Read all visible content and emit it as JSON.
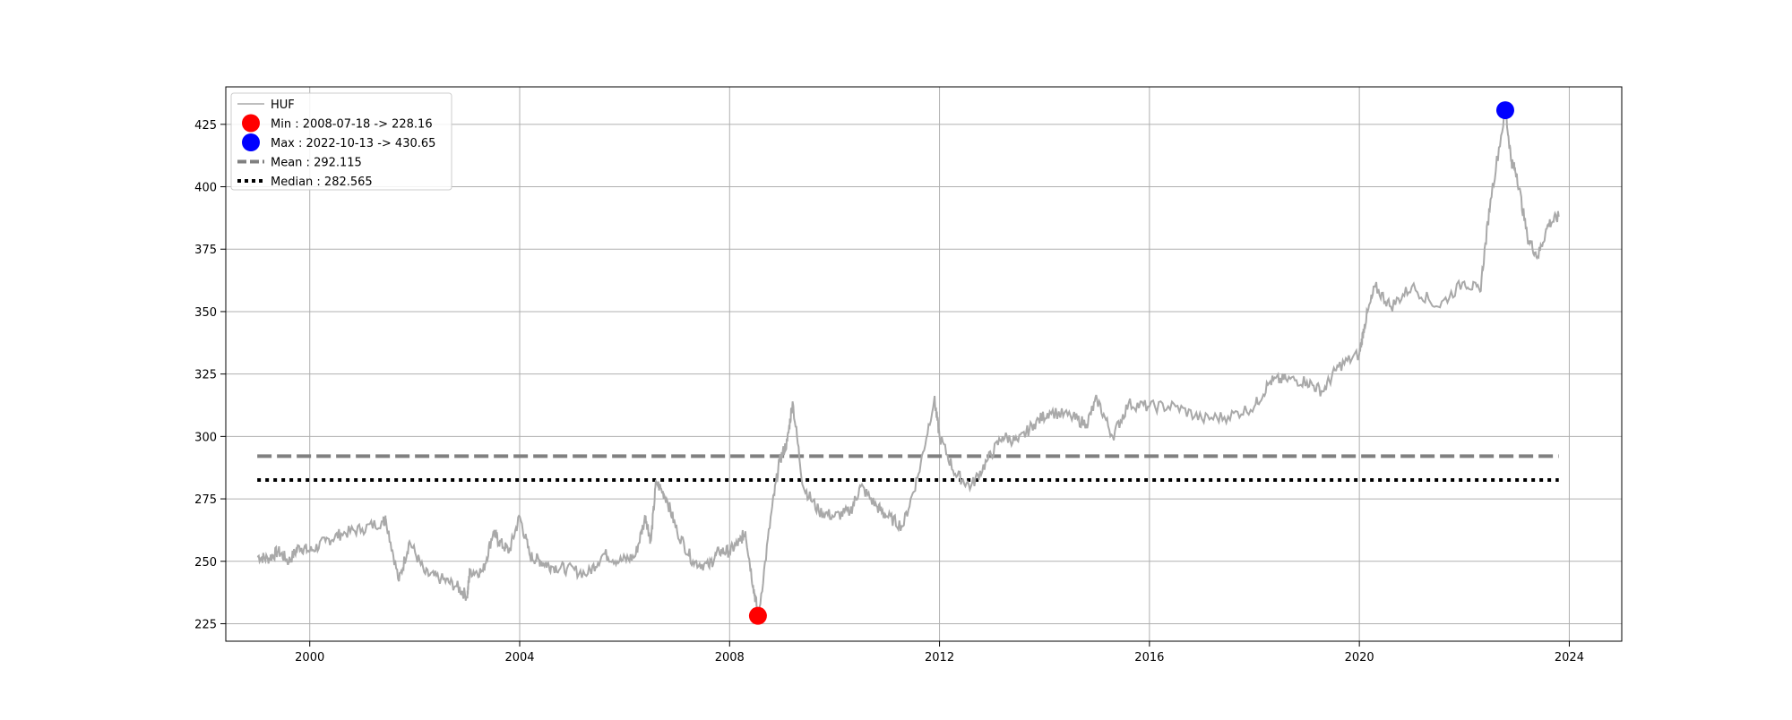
{
  "chart_data": {
    "type": "line",
    "title": "",
    "xlabel": "",
    "ylabel": "",
    "xlim": [
      1998.4,
      2025.0
    ],
    "ylim": [
      218,
      440
    ],
    "x_ticks": [
      2000,
      2004,
      2008,
      2012,
      2016,
      2020,
      2024
    ],
    "x_tick_labels": [
      "2000",
      "2004",
      "2008",
      "2012",
      "2016",
      "2020",
      "2024"
    ],
    "y_ticks": [
      225,
      250,
      275,
      300,
      325,
      350,
      375,
      400,
      425
    ],
    "y_tick_labels": [
      "225",
      "250",
      "275",
      "300",
      "325",
      "350",
      "375",
      "400",
      "425"
    ],
    "grid": true,
    "legend_position": "top-left",
    "colors": {
      "series": "#a9a9a9",
      "min_marker": "#ff0000",
      "max_marker": "#0000ff",
      "mean_line": "#808080",
      "median_line": "#000000"
    },
    "series": [
      {
        "name": "HUF",
        "x": [
          1999.0,
          1999.2,
          1999.4,
          1999.6,
          1999.8,
          2000.0,
          2000.3,
          2000.6,
          2001.0,
          2001.4,
          2001.45,
          2001.7,
          2001.9,
          2002.2,
          2002.5,
          2002.8,
          2003.0,
          2003.05,
          2003.3,
          2003.5,
          2003.6,
          2003.8,
          2004.0,
          2004.2,
          2004.4,
          2004.6,
          2004.9,
          2005.3,
          2005.6,
          2005.9,
          2006.2,
          2006.4,
          2006.5,
          2006.6,
          2006.8,
          2007.0,
          2007.3,
          2007.6,
          2007.8,
          2008.0,
          2008.2,
          2008.3,
          2008.45,
          2008.55,
          2008.8,
          2008.95,
          2009.1,
          2009.2,
          2009.4,
          2009.7,
          2010.0,
          2010.3,
          2010.5,
          2010.8,
          2011.0,
          2011.3,
          2011.6,
          2011.9,
          2012.0,
          2012.3,
          2012.6,
          2012.9,
          2013.2,
          2013.5,
          2013.8,
          2014.1,
          2014.5,
          2014.8,
          2015.0,
          2015.3,
          2015.6,
          2016.0,
          2016.5,
          2017.0,
          2017.5,
          2018.0,
          2018.3,
          2018.6,
          2019.0,
          2019.3,
          2019.6,
          2020.0,
          2020.1,
          2020.3,
          2020.6,
          2021.0,
          2021.5,
          2022.0,
          2022.3,
          2022.5,
          2022.78,
          2022.9,
          2023.0,
          2023.2,
          2023.4,
          2023.6,
          2023.8
        ],
        "values": [
          252,
          251,
          254,
          250,
          256,
          254,
          258,
          261,
          263,
          266,
          267,
          242,
          258,
          245,
          243,
          240,
          236,
          246,
          246,
          262,
          258,
          254,
          268,
          252,
          250,
          248,
          247,
          245,
          253,
          250,
          252,
          268,
          258,
          282,
          275,
          262,
          250,
          248,
          254,
          254,
          258,
          262,
          240,
          228.16,
          270,
          290,
          298,
          314,
          280,
          270,
          268,
          270,
          280,
          272,
          268,
          264,
          285,
          315,
          300,
          285,
          280,
          290,
          300,
          298,
          305,
          310,
          308,
          305,
          315,
          300,
          313,
          312,
          312,
          307,
          308,
          312,
          322,
          323,
          322,
          318,
          328,
          333,
          345,
          360,
          352,
          360,
          352,
          362,
          358,
          395,
          430.65,
          410,
          405,
          380,
          372,
          385,
          388
        ]
      }
    ],
    "markers": [
      {
        "label": "Min : 2008-07-18 -> 228.16",
        "x": 2008.54,
        "y": 228.16,
        "color": "#ff0000"
      },
      {
        "label": "Max : 2022-10-13 -> 430.65",
        "x": 2022.78,
        "y": 430.65,
        "color": "#0000ff"
      }
    ],
    "hlines": [
      {
        "label": "Mean : 292.115",
        "y": 292.115,
        "xrange": [
          1999.0,
          2023.8
        ],
        "style": "dashed",
        "color": "#808080"
      },
      {
        "label": "Median : 282.565",
        "y": 282.565,
        "xrange": [
          1999.0,
          2023.8
        ],
        "style": "dotted",
        "color": "#000000"
      }
    ],
    "legend_entries": [
      {
        "label": "HUF",
        "kind": "line",
        "color": "#a9a9a9"
      },
      {
        "label": "Min : 2008-07-18 -> 228.16",
        "kind": "marker",
        "color": "#ff0000"
      },
      {
        "label": "Max : 2022-10-13 -> 430.65",
        "kind": "marker",
        "color": "#0000ff"
      },
      {
        "label": "Mean : 292.115",
        "kind": "dashed",
        "color": "#808080"
      },
      {
        "label": "Median : 282.565",
        "kind": "dotted",
        "color": "#000000"
      }
    ]
  }
}
